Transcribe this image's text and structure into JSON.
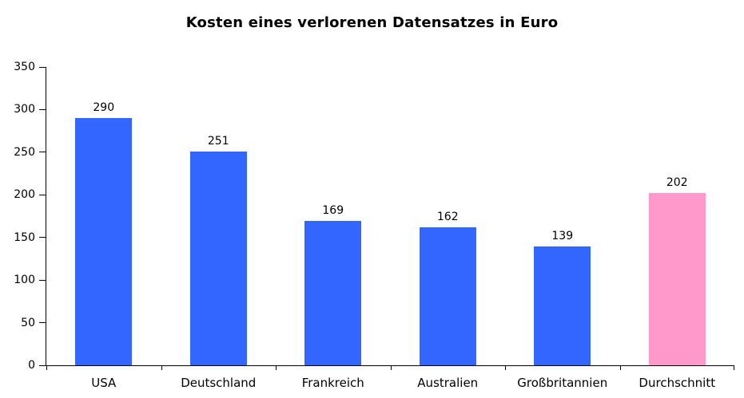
{
  "chart_data": {
    "type": "bar",
    "title": "Kosten eines verlorenen Datensatzes in Euro",
    "categories": [
      "USA",
      "Deutschland",
      "Frankreich",
      "Australien",
      "Großbritannien",
      "Durchschnitt"
    ],
    "values": [
      290,
      251,
      169,
      162,
      139,
      202
    ],
    "bar_colors": [
      "#3366FF",
      "#3366FF",
      "#3366FF",
      "#3366FF",
      "#3366FF",
      "#FF99CC"
    ],
    "value_labels": [
      "290",
      "251",
      "169",
      "162",
      "139",
      "202"
    ],
    "xlabel": "",
    "ylabel": "",
    "ylim": [
      0,
      350
    ],
    "yticks": [
      0,
      50,
      100,
      150,
      200,
      250,
      300,
      350
    ],
    "grid": false,
    "legend": false,
    "colors": {
      "bar_default": "#3366FF",
      "bar_highlight": "#FF99CC",
      "axis": "#000000",
      "text": "#000000",
      "background": "#FFFFFF"
    }
  }
}
